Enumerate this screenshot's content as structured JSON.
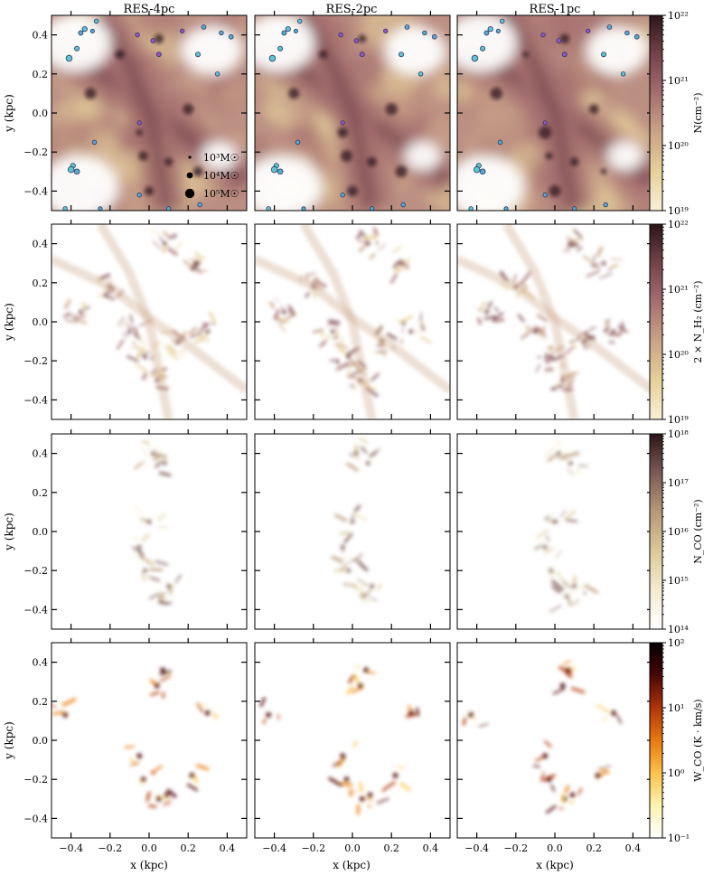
{
  "chart_data": {
    "type": "heatmap",
    "columns": [
      "RES-4pc",
      "RES-2pc",
      "RES-1pc"
    ],
    "xlabel": "x (kpc)",
    "ylabel": "y (kpc)",
    "xlim": [
      -0.5,
      0.5
    ],
    "ylim": [
      -0.5,
      0.5
    ],
    "xticks": [
      -0.4,
      -0.2,
      0.0,
      0.2,
      0.4
    ],
    "yticks": [
      -0.4,
      -0.2,
      0.0,
      0.2,
      0.4
    ],
    "xtick_labels": [
      "−0.4",
      "−0.2",
      "0.0",
      "0.2",
      "0.4"
    ],
    "ytick_labels": [
      "−0.4",
      "−0.2",
      "0.0",
      "0.2",
      "0.4"
    ],
    "rows": [
      {
        "quantity": "N(cm⁻²)",
        "colorbar_label": "N(cm⁻²)",
        "scale": "log",
        "range": [
          1e+19,
          1e+22
        ],
        "colorbar_ticks": [
          "10¹⁹",
          "10²⁰",
          "10²¹",
          "10²²"
        ],
        "colors": [
          "#f8f1d8",
          "#e6d09a",
          "#caa488",
          "#a56f6f",
          "#74434b",
          "#2b1518"
        ]
      },
      {
        "quantity": "2×N_H2(cm⁻²)",
        "colorbar_label": "2 × N_H₂ (cm⁻²)",
        "scale": "log",
        "range": [
          1e+19,
          1e+22
        ],
        "colorbar_ticks": [
          "10¹⁹",
          "10²⁰",
          "10²¹",
          "10²²"
        ],
        "colors": [
          "#f8f1d8",
          "#e6d09a",
          "#caa488",
          "#a56f6f",
          "#74434b",
          "#2b1518"
        ]
      },
      {
        "quantity": "N_CO(cm⁻²)",
        "colorbar_label": "N_CO (cm⁻²)",
        "scale": "log",
        "range": [
          100000000000000.0,
          1e+18
        ],
        "colorbar_ticks": [
          "10¹⁴",
          "10¹⁵",
          "10¹⁶",
          "10¹⁷",
          "10¹⁸"
        ],
        "colors": [
          "#ffffff",
          "#f3ecd0",
          "#dcc99a",
          "#b7987a",
          "#7d5a55",
          "#2b1518"
        ]
      },
      {
        "quantity": "W_CO(K·km/s)",
        "colorbar_label": "W_CO (K · km/s)",
        "scale": "log",
        "range": [
          0.1,
          100
        ],
        "colorbar_ticks": [
          "10⁻¹",
          "10⁰",
          "10¹",
          "10²"
        ],
        "colors": [
          "#ffffff",
          "#fff3b0",
          "#fdc24a",
          "#e8790f",
          "#b0340c",
          "#4a0605",
          "#000000"
        ]
      }
    ],
    "legend": {
      "placement": "lower-right",
      "title": "",
      "entries": [
        "10³M☉",
        "10⁴M☉",
        "10⁵M☉"
      ],
      "marker_mass": [
        1000,
        10000,
        100000
      ]
    },
    "star_clusters": [
      {
        "x": -0.27,
        "y": 0.47,
        "mass": 3000,
        "color": "#5fc4d4"
      },
      {
        "x": -0.33,
        "y": 0.43,
        "mass": 8000,
        "color": "#5fc4d4"
      },
      {
        "x": -0.35,
        "y": 0.41,
        "mass": 5000,
        "color": "#5aa8cf"
      },
      {
        "x": -0.29,
        "y": 0.42,
        "mass": 2000,
        "color": "#5aa8cf"
      },
      {
        "x": -0.41,
        "y": 0.28,
        "mass": 40000,
        "color": "#5fc4d4"
      },
      {
        "x": -0.37,
        "y": 0.33,
        "mass": 6000,
        "color": "#5fc4d4"
      },
      {
        "x": -0.06,
        "y": 0.4,
        "mass": 3000,
        "color": "#9a52c4"
      },
      {
        "x": 0.02,
        "y": 0.37,
        "mass": 4000,
        "color": "#9a52c4"
      },
      {
        "x": 0.05,
        "y": 0.3,
        "mass": 5000,
        "color": "#9a52c4"
      },
      {
        "x": 0.17,
        "y": 0.42,
        "mass": 2500,
        "color": "#9a52c4"
      },
      {
        "x": 0.28,
        "y": 0.44,
        "mass": 4000,
        "color": "#5aa8cf"
      },
      {
        "x": 0.37,
        "y": 0.41,
        "mass": 3000,
        "color": "#5aa8cf"
      },
      {
        "x": 0.42,
        "y": 0.39,
        "mass": 4000,
        "color": "#5aa8cf"
      },
      {
        "x": 0.25,
        "y": 0.3,
        "mass": 6000,
        "color": "#5fc4d4"
      },
      {
        "x": 0.35,
        "y": 0.2,
        "mass": 3000,
        "color": "#5fc4d4"
      },
      {
        "x": -0.05,
        "y": -0.05,
        "mass": 2000,
        "color": "#9a52c4"
      },
      {
        "x": -0.28,
        "y": -0.15,
        "mass": 3000,
        "color": "#5aa8cf"
      },
      {
        "x": -0.39,
        "y": -0.27,
        "mass": 8000,
        "color": "#5fc4d4"
      },
      {
        "x": -0.4,
        "y": -0.29,
        "mass": 40000,
        "color": "#5fc4d4"
      },
      {
        "x": -0.37,
        "y": -0.3,
        "mass": 15000,
        "color": "#5aa8cf"
      },
      {
        "x": -0.43,
        "y": -0.49,
        "mass": 3000,
        "color": "#5fc4d4"
      },
      {
        "x": -0.25,
        "y": -0.49,
        "mass": 2000,
        "color": "#5aa8cf"
      },
      {
        "x": -0.05,
        "y": -0.42,
        "mass": 2500,
        "color": "#5aa8cf"
      },
      {
        "x": 0.1,
        "y": -0.49,
        "mass": 2500,
        "color": "#5aa8cf"
      },
      {
        "x": 0.26,
        "y": -0.47,
        "mass": 3000,
        "color": "#5aa8cf"
      }
    ]
  }
}
